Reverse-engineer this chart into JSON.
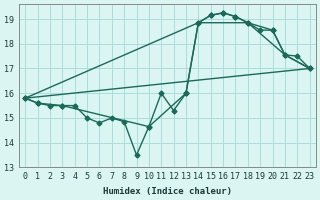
{
  "xlabel": "Humidex (Indice chaleur)",
  "bg_color": "#daf5f2",
  "grid_color": "#aadddd",
  "line_color": "#1a6a5a",
  "xlim": [
    -0.5,
    23.5
  ],
  "ylim": [
    13,
    19.6
  ],
  "yticks": [
    13,
    14,
    15,
    16,
    17,
    18,
    19
  ],
  "xticks": [
    0,
    1,
    2,
    3,
    4,
    5,
    6,
    7,
    8,
    9,
    10,
    11,
    12,
    13,
    14,
    15,
    16,
    17,
    18,
    19,
    20,
    21,
    22,
    23
  ],
  "line1_x": [
    0,
    1,
    2,
    3,
    4,
    5,
    6,
    7,
    8,
    9,
    10,
    11,
    12,
    13,
    14,
    15,
    16,
    17,
    18,
    19,
    20,
    21,
    22,
    23
  ],
  "line1_y": [
    15.8,
    15.6,
    15.5,
    15.5,
    15.5,
    15.0,
    14.8,
    15.0,
    14.85,
    13.5,
    14.65,
    16.0,
    15.3,
    16.0,
    18.85,
    19.15,
    19.25,
    19.1,
    18.85,
    18.55,
    18.55,
    17.55,
    17.5,
    17.0
  ],
  "line2_x": [
    0,
    1,
    3,
    10,
    13,
    14,
    15,
    16,
    17,
    18,
    20,
    21,
    23
  ],
  "line2_y": [
    15.8,
    15.6,
    15.5,
    14.65,
    16.0,
    18.85,
    19.15,
    19.25,
    19.1,
    18.85,
    18.55,
    17.55,
    17.0
  ],
  "line3_x": [
    0,
    14,
    18,
    21,
    23
  ],
  "line3_y": [
    15.8,
    18.85,
    18.85,
    17.55,
    17.0
  ],
  "line4_x": [
    0,
    23
  ],
  "line4_y": [
    15.8,
    17.0
  ]
}
